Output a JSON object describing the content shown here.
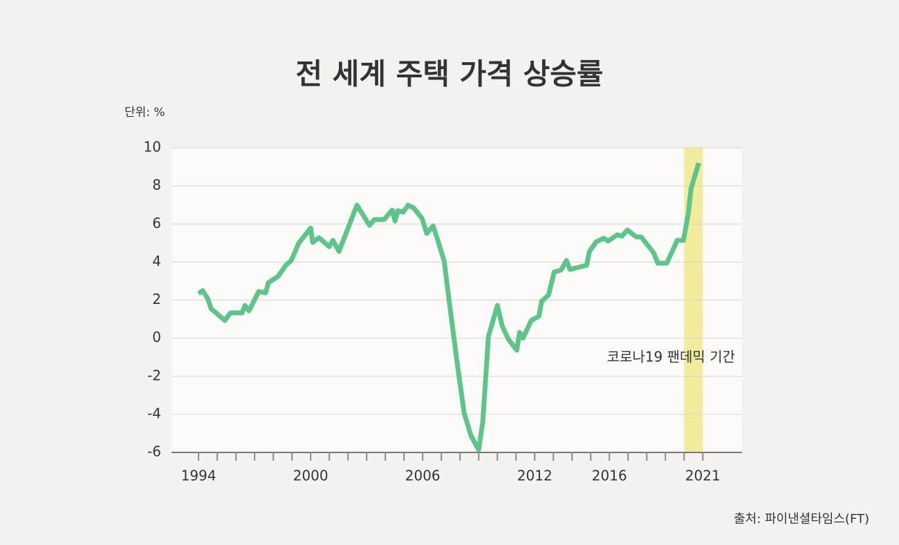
{
  "chart_data": {
    "type": "line",
    "title": "전 세계 주택 가격 상승률",
    "unit_label": "단위: %",
    "source": "출처: 파이낸셜타임스(FT)",
    "annotation": "코로나19 팬데믹 기간",
    "highlight": [
      2020,
      2021
    ],
    "highlight_color": "#f1ec9c",
    "xlim": [
      1992.55,
      2023.1
    ],
    "xticks": [
      1994,
      2000,
      2006,
      2012,
      2016,
      2021
    ],
    "xminor_ticks": [
      1994,
      1995,
      1996,
      1997,
      1998,
      1999,
      2000,
      2001,
      2002,
      2003,
      2004,
      2005,
      2006,
      2007,
      2008,
      2009,
      2010,
      2011,
      2012,
      2013,
      2014,
      2015,
      2016,
      2017,
      2018,
      2019,
      2020,
      2021
    ],
    "ylim": [
      -6,
      10
    ],
    "yticks": [
      -6,
      -4,
      -2,
      0,
      2,
      4,
      6,
      8,
      10
    ],
    "grid": true,
    "series": [
      {
        "name": "전 세계 주택 가격 상승률",
        "color": "#5ec48a",
        "x": [
          1994.0,
          1994.22,
          1994.48,
          1994.67,
          1995.41,
          1995.7,
          1996.33,
          1996.48,
          1996.7,
          1997.22,
          1997.59,
          1997.74,
          1998.26,
          1998.67,
          1998.96,
          1999.37,
          2000.0,
          2000.11,
          2000.44,
          2001.0,
          2001.19,
          2001.52,
          2002.48,
          2003.15,
          2003.41,
          2003.93,
          2004.37,
          2004.52,
          2004.67,
          2004.96,
          2005.22,
          2005.52,
          2005.96,
          2006.22,
          2006.56,
          2006.81,
          2007.15,
          2007.44,
          2007.81,
          2008.22,
          2008.59,
          2009.0,
          2009.22,
          2009.52,
          2010.0,
          2010.26,
          2010.59,
          2011.04,
          2011.19,
          2011.37,
          2011.81,
          2012.22,
          2012.37,
          2012.74,
          2013.04,
          2013.41,
          2013.7,
          2013.89,
          2014.78,
          2014.93,
          2015.3,
          2015.7,
          2015.93,
          2016.41,
          2016.67,
          2016.96,
          2017.44,
          2017.7,
          2018.37,
          2018.59,
          2019.07,
          2019.63,
          2019.96,
          2020.22,
          2020.37,
          2020.78
        ],
        "values": [
          2.34,
          2.5,
          2.1,
          1.55,
          0.93,
          1.33,
          1.33,
          1.72,
          1.44,
          2.45,
          2.38,
          2.92,
          3.25,
          3.83,
          4.08,
          5.0,
          5.79,
          5.03,
          5.28,
          4.81,
          5.14,
          4.56,
          6.99,
          5.93,
          6.23,
          6.23,
          6.73,
          6.15,
          6.7,
          6.62,
          6.99,
          6.84,
          6.3,
          5.5,
          5.9,
          5.14,
          4.05,
          1.8,
          -1.03,
          -3.93,
          -5.13,
          -5.86,
          -4.37,
          0.09,
          1.72,
          0.63,
          -0.05,
          -0.63,
          0.31,
          0,
          0.93,
          1.15,
          1.94,
          2.27,
          3.47,
          3.58,
          4.08,
          3.61,
          3.83,
          4.56,
          5.07,
          5.25,
          5.1,
          5.43,
          5.36,
          5.68,
          5.32,
          5.32,
          4.48,
          3.94,
          3.94,
          5.14,
          5.14,
          6.52,
          7.86,
          9.2
        ]
      }
    ]
  }
}
